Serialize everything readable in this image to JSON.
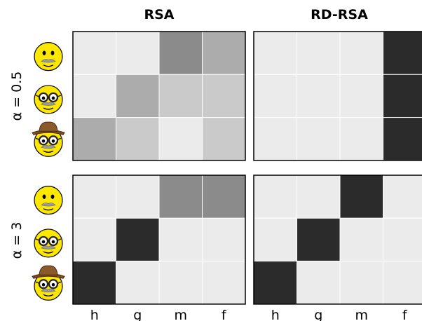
{
  "chart_data": {
    "type": "heatmap",
    "column_titles": [
      "RSA",
      "RD-RSA"
    ],
    "row_labels": [
      "α = 0.5",
      "α = 3"
    ],
    "x_tick_labels": [
      "h",
      "g",
      "m",
      "f"
    ],
    "y_icons": [
      "mustache-face-icon",
      "glasses-mustache-face-icon",
      "hat-glasses-mustache-face-icon"
    ],
    "colormap": "grayscale (0 = light #ebebeb, 1 = dark #2b2b2b)",
    "panels": [
      {
        "row": "α = 0.5",
        "column": "RSA",
        "values": [
          [
            0.0,
            0.0,
            0.5,
            0.33
          ],
          [
            0.0,
            0.33,
            0.17,
            0.17
          ],
          [
            0.33,
            0.17,
            0.0,
            0.17
          ]
        ]
      },
      {
        "row": "α = 0.5",
        "column": "RD-RSA",
        "values": [
          [
            0.0,
            0.0,
            0.0,
            1.0
          ],
          [
            0.0,
            0.0,
            0.0,
            1.0
          ],
          [
            0.0,
            0.0,
            0.0,
            1.0
          ]
        ]
      },
      {
        "row": "α = 3",
        "column": "RSA",
        "values": [
          [
            0.0,
            0.0,
            0.5,
            0.5
          ],
          [
            0.0,
            1.0,
            0.0,
            0.0
          ],
          [
            1.0,
            0.0,
            0.0,
            0.0
          ]
        ]
      },
      {
        "row": "α = 3",
        "column": "RD-RSA",
        "values": [
          [
            0.0,
            0.0,
            1.0,
            0.0
          ],
          [
            0.0,
            1.0,
            0.0,
            0.0
          ],
          [
            1.0,
            0.0,
            0.0,
            0.0
          ]
        ]
      }
    ]
  }
}
